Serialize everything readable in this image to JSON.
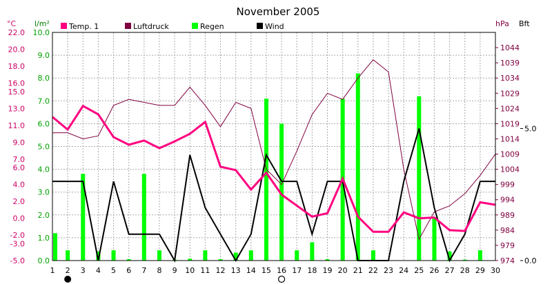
{
  "chart_data": {
    "type": "line",
    "title": "November 2005",
    "x": [
      1,
      2,
      3,
      4,
      5,
      6,
      7,
      8,
      9,
      10,
      11,
      12,
      13,
      14,
      15,
      16,
      17,
      18,
      19,
      20,
      21,
      22,
      23,
      24,
      25,
      26,
      27,
      28,
      29,
      30
    ],
    "axis_units": {
      "temp": "°C",
      "rain": "l/m²",
      "pressure": "hPa",
      "wind": "Bft"
    },
    "temp_ticks": [
      "-5.0",
      "-3.0",
      "-2.0",
      "0.0",
      "2.0",
      "4.0",
      "6.0",
      "7.0",
      "9.0",
      "11.0",
      "13.0",
      "15.0",
      "16.0",
      "18.0",
      "20.0",
      "22.0"
    ],
    "rain_ticks": [
      "0.0",
      "1.0",
      "2.0",
      "3.0",
      "4.0",
      "5.0",
      "6.0",
      "7.0",
      "8.0",
      "9.0",
      "10.0"
    ],
    "pressure_ticks": [
      "974",
      "979",
      "984",
      "989",
      "994",
      "999",
      "1004",
      "1009",
      "1014",
      "1019",
      "1024",
      "1029",
      "1034",
      "1039",
      "1044"
    ],
    "wind_ticks": [
      "0.0",
      "5.0"
    ],
    "ylim_temp": [
      -5,
      22
    ],
    "ylim_rain": [
      0,
      10
    ],
    "ylim_pressure": [
      974,
      1049
    ],
    "ylim_wind": [
      0,
      8.64
    ],
    "series": [
      {
        "name": "Temp. 1",
        "axis": "temp",
        "color": "#ff0080",
        "values": [
          12.0,
          10.5,
          13.3,
          12.3,
          9.6,
          8.7,
          9.2,
          8.3,
          9.1,
          10.0,
          11.4,
          6.1,
          5.7,
          3.4,
          5.4,
          2.8,
          1.5,
          0.2,
          0.6,
          4.7,
          0.2,
          -1.6,
          -1.6,
          0.7,
          0.0,
          0.1,
          -1.4,
          -1.5,
          1.9,
          1.6
        ]
      },
      {
        "name": "Luftdruck",
        "axis": "pressure",
        "color": "#800040",
        "values": [
          1016,
          1016,
          1014,
          1015,
          1025,
          1027,
          1026,
          1025,
          1025,
          1031,
          1025,
          1018,
          1026,
          1024,
          1004,
          999,
          1010,
          1022,
          1029,
          1027,
          1034,
          1040,
          1036,
          1004,
          981,
          990,
          992,
          996,
          1002,
          1009
        ]
      },
      {
        "name": "Regen",
        "axis": "rain",
        "color": "#00ff00",
        "values": [
          1.2,
          0.45,
          3.8,
          0.4,
          0.45,
          0.06,
          3.8,
          0.45,
          0.04,
          0.08,
          0.45,
          0.06,
          0.35,
          0.45,
          7.1,
          6.0,
          0.45,
          0.8,
          0.06,
          7.1,
          8.2,
          0.45,
          0,
          0,
          7.2,
          1.9,
          0.4,
          0.04,
          0.45,
          0
        ]
      },
      {
        "name": "Wind",
        "axis": "wind",
        "color": "#000000",
        "values": [
          3,
          3,
          3,
          0,
          3,
          1,
          1,
          1,
          0,
          4,
          2,
          1,
          0,
          1,
          4,
          3,
          3,
          1,
          3,
          3,
          0,
          0,
          0,
          3,
          5,
          2,
          0,
          1,
          3,
          3
        ]
      }
    ],
    "legend_position": "top",
    "grid": true,
    "day_markers": {
      "new_moon_day": 2,
      "full_moon_day": 16
    }
  }
}
